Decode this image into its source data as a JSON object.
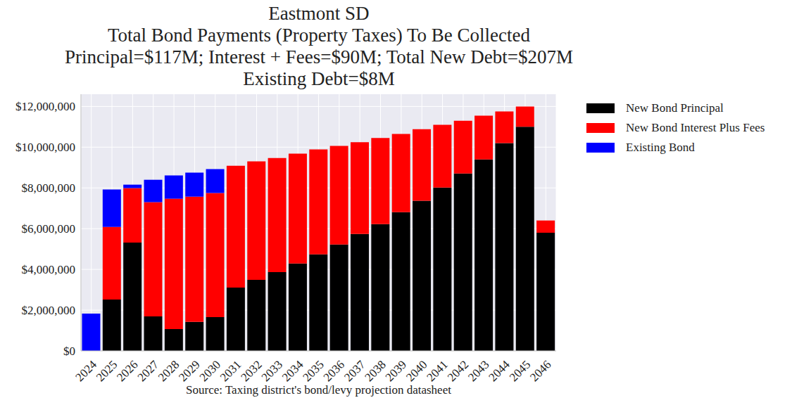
{
  "chart_data": {
    "type": "bar",
    "title": "Eastmont SD",
    "subtitle": [
      "Total Bond Payments (Property Taxes) To Be Collected",
      "Principal=$117M; Interest + Fees=$90M; Total New Debt=$207M",
      "Existing Debt=$8M"
    ],
    "x_label": "Source: Taxing district's bond/levy projection datasheet",
    "categories": [
      "2024",
      "2025",
      "2026",
      "2027",
      "2028",
      "2029",
      "2030",
      "2031",
      "2032",
      "2033",
      "2034",
      "2035",
      "2036",
      "2037",
      "2038",
      "2039",
      "2040",
      "2041",
      "2042",
      "2043",
      "2044",
      "2045",
      "2046"
    ],
    "series": [
      {
        "name": "New Bond Principal",
        "color": "#000000",
        "values": [
          0,
          2520000,
          5320000,
          1690000,
          1070000,
          1420000,
          1660000,
          3110000,
          3490000,
          3870000,
          4290000,
          4740000,
          5220000,
          5740000,
          6220000,
          6810000,
          7370000,
          8020000,
          8710000,
          9400000,
          10200000,
          11000000,
          5800000
        ]
      },
      {
        "name": "New Bond Interest Plus Fees",
        "color": "#ff0000",
        "values": [
          0,
          3560000,
          2670000,
          5610000,
          6400000,
          6150000,
          6090000,
          5980000,
          5810000,
          5600000,
          5390000,
          5150000,
          4840000,
          4500000,
          4230000,
          3840000,
          3510000,
          3080000,
          2590000,
          2150000,
          1550000,
          1000000,
          600000
        ]
      },
      {
        "name": "Existing Bond",
        "color": "#0000ff",
        "values": [
          1830000,
          1840000,
          170000,
          1100000,
          1140000,
          1180000,
          1170000,
          0,
          0,
          0,
          0,
          0,
          0,
          0,
          0,
          0,
          0,
          0,
          0,
          0,
          0,
          0,
          0
        ]
      }
    ],
    "stacked": true,
    "ylim": [
      0,
      12600000
    ],
    "yticks": [
      {
        "value": 0,
        "label": "$0"
      },
      {
        "value": 2000000,
        "label": "$2,000,000"
      },
      {
        "value": 4000000,
        "label": "$4,000,000"
      },
      {
        "value": 6000000,
        "label": "$6,000,000"
      },
      {
        "value": 8000000,
        "label": "$8,000,000"
      },
      {
        "value": 10000000,
        "label": "$10,000,000"
      },
      {
        "value": 12000000,
        "label": "$12,000,000"
      }
    ],
    "grid": true,
    "legend": "outside right"
  }
}
